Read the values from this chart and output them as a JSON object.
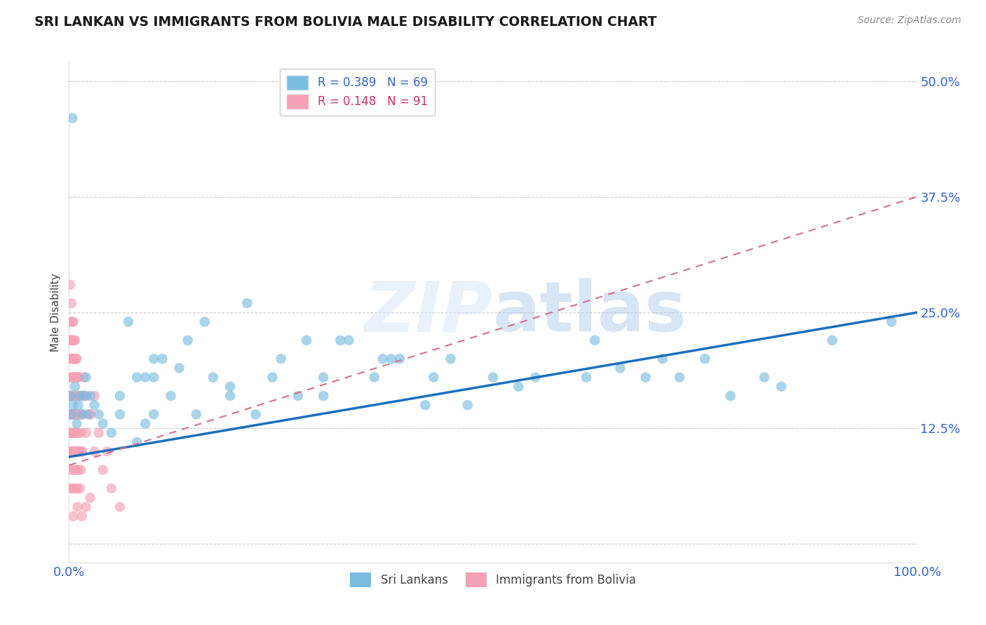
{
  "title": "SRI LANKAN VS IMMIGRANTS FROM BOLIVIA MALE DISABILITY CORRELATION CHART",
  "source": "Source: ZipAtlas.com",
  "ylabel": "Male Disability",
  "xlim": [
    0,
    1.0
  ],
  "ylim": [
    -0.02,
    0.52
  ],
  "yticks": [
    0.0,
    0.125,
    0.25,
    0.375,
    0.5
  ],
  "ytick_labels": [
    "",
    "12.5%",
    "25.0%",
    "37.5%",
    "50.0%"
  ],
  "legend_blue_r": "R = 0.389",
  "legend_blue_n": "N = 69",
  "legend_pink_r": "R = 0.148",
  "legend_pink_n": "N = 91",
  "blue_color": "#7bbde0",
  "pink_color": "#f4a0b5",
  "blue_line_color": "#1a6fbe",
  "pink_line_color": "#d4708a",
  "blue_line": [
    [
      0.0,
      0.094
    ],
    [
      1.0,
      0.25
    ]
  ],
  "pink_line": [
    [
      0.0,
      0.085
    ],
    [
      1.0,
      0.375
    ]
  ],
  "sri_lankans_x": [
    0.004,
    0.45,
    0.36,
    0.28,
    0.19,
    0.39,
    0.1,
    0.22,
    0.13,
    0.19,
    0.3,
    0.38,
    0.3,
    0.5,
    0.42,
    0.61,
    0.53,
    0.62,
    0.7,
    0.72,
    0.78,
    0.84,
    0.9,
    0.97,
    0.82,
    0.65,
    0.75,
    0.55,
    0.47,
    0.68,
    0.16,
    0.25,
    0.06,
    0.08,
    0.1,
    0.12,
    0.14,
    0.07,
    0.09,
    0.11,
    0.21,
    0.24,
    0.33,
    0.37,
    0.43,
    0.32,
    0.27,
    0.17,
    0.15,
    0.002,
    0.003,
    0.005,
    0.007,
    0.009,
    0.011,
    0.013,
    0.015,
    0.018,
    0.02,
    0.022,
    0.025,
    0.03,
    0.035,
    0.04,
    0.05,
    0.06,
    0.08,
    0.09,
    0.1
  ],
  "sri_lankans_y": [
    0.46,
    0.2,
    0.18,
    0.22,
    0.16,
    0.2,
    0.18,
    0.14,
    0.19,
    0.17,
    0.18,
    0.2,
    0.16,
    0.18,
    0.15,
    0.18,
    0.17,
    0.22,
    0.2,
    0.18,
    0.16,
    0.17,
    0.22,
    0.24,
    0.18,
    0.19,
    0.2,
    0.18,
    0.15,
    0.18,
    0.24,
    0.2,
    0.16,
    0.18,
    0.2,
    0.16,
    0.22,
    0.24,
    0.18,
    0.2,
    0.26,
    0.18,
    0.22,
    0.2,
    0.18,
    0.22,
    0.16,
    0.18,
    0.14,
    0.16,
    0.14,
    0.15,
    0.17,
    0.13,
    0.15,
    0.16,
    0.14,
    0.16,
    0.18,
    0.14,
    0.16,
    0.15,
    0.14,
    0.13,
    0.12,
    0.14,
    0.11,
    0.13,
    0.14
  ],
  "bolivia_x": [
    0.001,
    0.002,
    0.003,
    0.004,
    0.005,
    0.001,
    0.002,
    0.003,
    0.004,
    0.005,
    0.001,
    0.002,
    0.003,
    0.004,
    0.005,
    0.006,
    0.007,
    0.008,
    0.009,
    0.01,
    0.001,
    0.002,
    0.003,
    0.004,
    0.005,
    0.006,
    0.007,
    0.008,
    0.009,
    0.01,
    0.011,
    0.012,
    0.013,
    0.014,
    0.015,
    0.016,
    0.017,
    0.018,
    0.001,
    0.002,
    0.003,
    0.004,
    0.005,
    0.006,
    0.007,
    0.008,
    0.009,
    0.01,
    0.02,
    0.025,
    0.03,
    0.001,
    0.002,
    0.003,
    0.004,
    0.005,
    0.006,
    0.007,
    0.008,
    0.009,
    0.01,
    0.011,
    0.012,
    0.013,
    0.014,
    0.015,
    0.005,
    0.01,
    0.015,
    0.02,
    0.025,
    0.001,
    0.002,
    0.003,
    0.004,
    0.005,
    0.006,
    0.007,
    0.008,
    0.009,
    0.01,
    0.015,
    0.02,
    0.025,
    0.03,
    0.035,
    0.04,
    0.045,
    0.05,
    0.06,
    0.001
  ],
  "bolivia_y": [
    0.2,
    0.22,
    0.18,
    0.24,
    0.2,
    0.16,
    0.18,
    0.14,
    0.2,
    0.18,
    0.12,
    0.16,
    0.2,
    0.14,
    0.18,
    0.22,
    0.16,
    0.2,
    0.14,
    0.18,
    0.14,
    0.16,
    0.12,
    0.14,
    0.16,
    0.18,
    0.14,
    0.12,
    0.16,
    0.14,
    0.18,
    0.16,
    0.14,
    0.12,
    0.16,
    0.14,
    0.18,
    0.16,
    0.1,
    0.12,
    0.14,
    0.1,
    0.12,
    0.14,
    0.12,
    0.1,
    0.14,
    0.12,
    0.16,
    0.14,
    0.16,
    0.06,
    0.08,
    0.1,
    0.06,
    0.08,
    0.1,
    0.06,
    0.08,
    0.1,
    0.06,
    0.08,
    0.1,
    0.06,
    0.08,
    0.1,
    0.03,
    0.04,
    0.03,
    0.04,
    0.05,
    0.22,
    0.24,
    0.26,
    0.22,
    0.24,
    0.2,
    0.22,
    0.18,
    0.2,
    0.18,
    0.1,
    0.12,
    0.14,
    0.1,
    0.12,
    0.08,
    0.1,
    0.06,
    0.04,
    0.28
  ]
}
